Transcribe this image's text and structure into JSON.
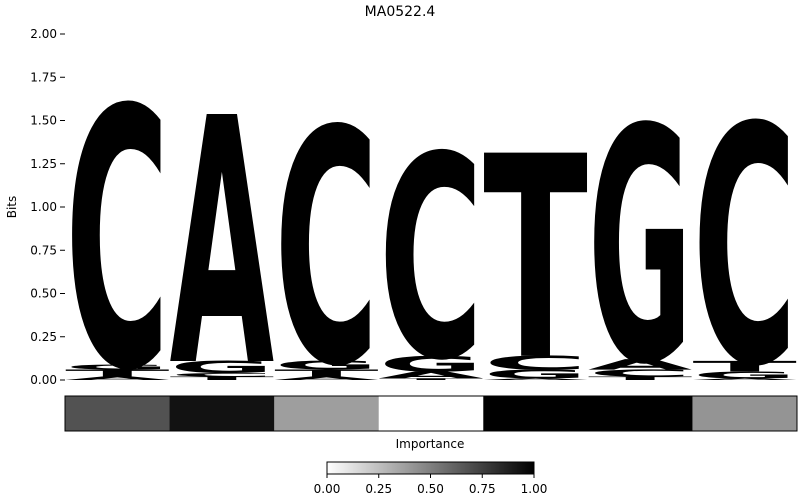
{
  "chart_data": {
    "type": "sequence-logo",
    "title": "MA0522.4",
    "ylabel": "Bits",
    "ylim": [
      0,
      2.0
    ],
    "yticks": [
      "0.00",
      "0.25",
      "0.50",
      "0.75",
      "1.00",
      "1.25",
      "1.50",
      "1.75",
      "2.00"
    ],
    "colors": {
      "A": "#4daa4d",
      "C": "#4d4dff",
      "G": "#ffc04d",
      "T": "#ff4d4d"
    },
    "positions": [
      {
        "stack": [
          {
            "base": "A",
            "bits": 0.02
          },
          {
            "base": "T",
            "bits": 0.04
          },
          {
            "base": "G",
            "bits": 0.03
          },
          {
            "base": "C",
            "bits": 1.48
          }
        ]
      },
      {
        "stack": [
          {
            "base": "T",
            "bits": 0.02
          },
          {
            "base": "C",
            "bits": 0.02
          },
          {
            "base": "G",
            "bits": 0.07
          },
          {
            "base": "A",
            "bits": 1.41
          }
        ]
      },
      {
        "stack": [
          {
            "base": "A",
            "bits": 0.02
          },
          {
            "base": "T",
            "bits": 0.04
          },
          {
            "base": "G",
            "bits": 0.05
          },
          {
            "base": "C",
            "bits": 1.34
          }
        ]
      },
      {
        "stack": [
          {
            "base": "T",
            "bits": 0.01
          },
          {
            "base": "A",
            "bits": 0.04
          },
          {
            "base": "G",
            "bits": 0.09
          },
          {
            "base": "C",
            "bits": 1.16
          }
        ]
      },
      {
        "stack": [
          {
            "base": "A",
            "bits": 0.01
          },
          {
            "base": "G",
            "bits": 0.05
          },
          {
            "base": "C",
            "bits": 0.08
          },
          {
            "base": "T",
            "bits": 1.16
          }
        ]
      },
      {
        "stack": [
          {
            "base": "T",
            "bits": 0.02
          },
          {
            "base": "C",
            "bits": 0.04
          },
          {
            "base": "A",
            "bits": 0.06
          },
          {
            "base": "G",
            "bits": 1.34
          }
        ]
      },
      {
        "stack": [
          {
            "base": "A",
            "bits": 0.01
          },
          {
            "base": "G",
            "bits": 0.04
          },
          {
            "base": "T",
            "bits": 0.06
          },
          {
            "base": "C",
            "bits": 1.36
          }
        ]
      }
    ],
    "importance": {
      "xlabel": "Importance",
      "values": [
        0.68,
        0.93,
        0.38,
        0.0,
        1.0,
        1.0,
        0.42
      ],
      "colorbar_ticks": [
        "0.00",
        "0.25",
        "0.50",
        "0.75",
        "1.00"
      ],
      "colormap": "Greys"
    }
  }
}
